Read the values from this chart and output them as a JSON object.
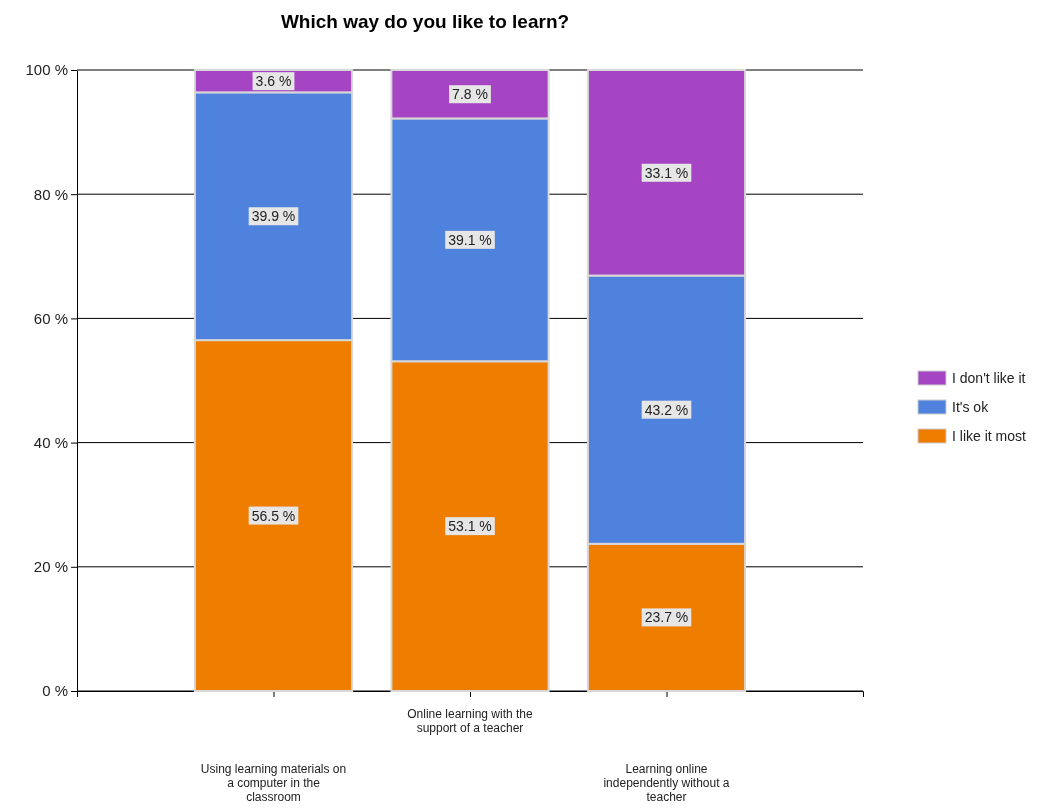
{
  "chart_data": {
    "type": "bar",
    "title": "Which way do you like to learn?",
    "stacked": true,
    "categories": [
      "Using learning materials on a computer in the classroom",
      "Online learning with the support of a teacher",
      "Learning online independently without a teacher"
    ],
    "series": [
      {
        "name": "I like it most",
        "color": "#ee7d00",
        "values": [
          56.5,
          53.1,
          23.7
        ],
        "value_labels": [
          "56.5 %",
          "53.1 %",
          "23.7 %"
        ]
      },
      {
        "name": "It's ok",
        "color": "#4f82dc",
        "values": [
          39.9,
          39.1,
          43.2
        ],
        "value_labels": [
          "39.9 %",
          "39.1 %",
          "43.2 %"
        ]
      },
      {
        "name": "I don't like it",
        "color": "#a545c4",
        "values": [
          3.6,
          7.8,
          33.1
        ],
        "value_labels": [
          "3.6 %",
          "7.8 %",
          "33.1 %"
        ]
      }
    ],
    "ylim": [
      0,
      100
    ],
    "yticks": [
      {
        "value": 0,
        "label": "0 %"
      },
      {
        "value": 20,
        "label": "20 %"
      },
      {
        "value": 40,
        "label": "40 %"
      },
      {
        "value": 60,
        "label": "60 %"
      },
      {
        "value": 80,
        "label": "80 %"
      },
      {
        "value": 100,
        "label": "100 %"
      }
    ],
    "grid": "y",
    "legend": "right"
  }
}
